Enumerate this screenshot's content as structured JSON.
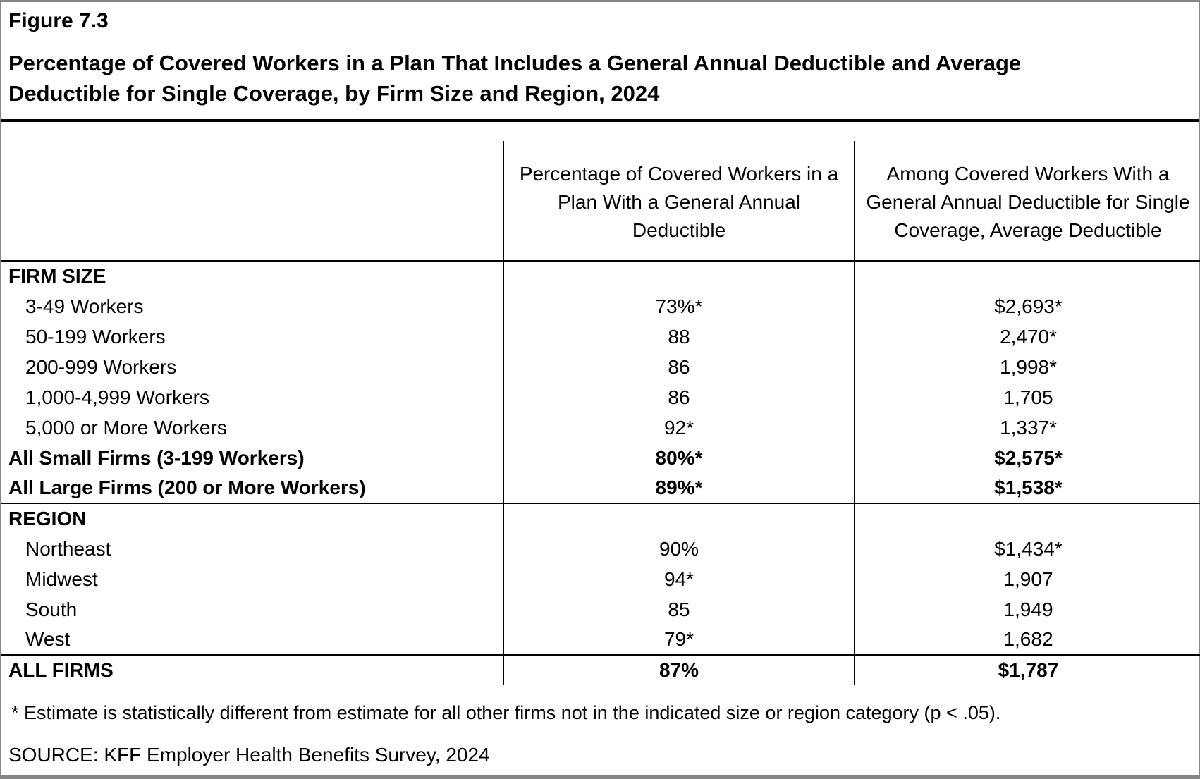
{
  "figure": {
    "label": "Figure 7.3",
    "title_lines": [
      "Percentage of Covered Workers in a Plan That Includes a General Annual Deductible and Average",
      "Deductible for Single Coverage, by Firm Size and Region, 2024"
    ]
  },
  "table": {
    "columns": [
      {
        "lines": [
          "Percentage of Covered Workers in a",
          "Plan With a General Annual",
          "Deductible"
        ]
      },
      {
        "lines": [
          "Among Covered Workers With a",
          "General Annual Deductible for Single",
          "Coverage, Average Deductible"
        ]
      }
    ],
    "rows": [
      {
        "label": "FIRM SIZE",
        "pct": "",
        "deductible": "",
        "style": "section",
        "rule": 3
      },
      {
        "label": "3-49 Workers",
        "pct": "73%*",
        "deductible": "$2,693*",
        "style": "indent"
      },
      {
        "label": "50-199 Workers",
        "pct": "88",
        "deductible": "2,470*",
        "style": "indent"
      },
      {
        "label": "200-999 Workers",
        "pct": "86",
        "deductible": "1,998*",
        "style": "indent"
      },
      {
        "label": "1,000-4,999 Workers",
        "pct": "86",
        "deductible": "1,705",
        "style": "indent"
      },
      {
        "label": "5,000 or More Workers",
        "pct": "92*",
        "deductible": "1,337*",
        "style": "indent"
      },
      {
        "label": "All Small Firms (3-199 Workers)",
        "pct": "80%*",
        "deductible": "$2,575*",
        "style": "boldrow"
      },
      {
        "label": "All Large Firms (200 or More Workers)",
        "pct": "89%*",
        "deductible": "$1,538*",
        "style": "boldrow"
      },
      {
        "label": "REGION",
        "pct": "",
        "deductible": "",
        "style": "section",
        "rule": 2
      },
      {
        "label": "Northeast",
        "pct": "90%",
        "deductible": "$1,434*",
        "style": "indent"
      },
      {
        "label": "Midwest",
        "pct": "94*",
        "deductible": "1,907",
        "style": "indent"
      },
      {
        "label": "South",
        "pct": "85",
        "deductible": "1,949",
        "style": "indent"
      },
      {
        "label": "West",
        "pct": "79*",
        "deductible": "1,682",
        "style": "indent"
      },
      {
        "label": "ALL FIRMS",
        "pct": "87%",
        "deductible": "$1,787",
        "style": "section",
        "rule": 2
      }
    ]
  },
  "notes": {
    "footnote": "* Estimate is statistically different from estimate for all other firms not in the indicated size or region category (p < .05).",
    "source": "SOURCE: KFF Employer Health Benefits Survey, 2024"
  },
  "chart_data": {
    "type": "table",
    "title": "Percentage of Covered Workers in a Plan That Includes a General Annual Deductible and Average Deductible for Single Coverage, by Firm Size and Region, 2024",
    "figure_number": "Figure 7.3",
    "columns": [
      "Percentage of Covered Workers in a Plan With a General Annual Deductible (%)",
      "Among Covered Workers With a General Annual Deductible for Single Coverage, Average Deductible ($)"
    ],
    "groups": [
      {
        "name": "FIRM SIZE",
        "rows": [
          {
            "label": "3-49 Workers",
            "pct": 73,
            "pct_sig": true,
            "deductible": 2693,
            "deductible_sig": true
          },
          {
            "label": "50-199 Workers",
            "pct": 88,
            "pct_sig": false,
            "deductible": 2470,
            "deductible_sig": true
          },
          {
            "label": "200-999 Workers",
            "pct": 86,
            "pct_sig": false,
            "deductible": 1998,
            "deductible_sig": true
          },
          {
            "label": "1,000-4,999 Workers",
            "pct": 86,
            "pct_sig": false,
            "deductible": 1705,
            "deductible_sig": false
          },
          {
            "label": "5,000 or More Workers",
            "pct": 92,
            "pct_sig": true,
            "deductible": 1337,
            "deductible_sig": true
          },
          {
            "label": "All Small Firms (3-199 Workers)",
            "pct": 80,
            "pct_sig": true,
            "deductible": 2575,
            "deductible_sig": true
          },
          {
            "label": "All Large Firms (200 or More Workers)",
            "pct": 89,
            "pct_sig": true,
            "deductible": 1538,
            "deductible_sig": true
          }
        ]
      },
      {
        "name": "REGION",
        "rows": [
          {
            "label": "Northeast",
            "pct": 90,
            "pct_sig": false,
            "deductible": 1434,
            "deductible_sig": true
          },
          {
            "label": "Midwest",
            "pct": 94,
            "pct_sig": true,
            "deductible": 1907,
            "deductible_sig": false
          },
          {
            "label": "South",
            "pct": 85,
            "pct_sig": false,
            "deductible": 1949,
            "deductible_sig": false
          },
          {
            "label": "West",
            "pct": 79,
            "pct_sig": true,
            "deductible": 1682,
            "deductible_sig": false
          }
        ]
      },
      {
        "name": "ALL FIRMS",
        "rows": [
          {
            "label": "ALL FIRMS",
            "pct": 87,
            "pct_sig": false,
            "deductible": 1787,
            "deductible_sig": false
          }
        ]
      }
    ],
    "footnote": "* Estimate is statistically different from estimate for all other firms not in the indicated size or region category (p < .05).",
    "source": "SOURCE: KFF Employer Health Benefits Survey, 2024"
  }
}
